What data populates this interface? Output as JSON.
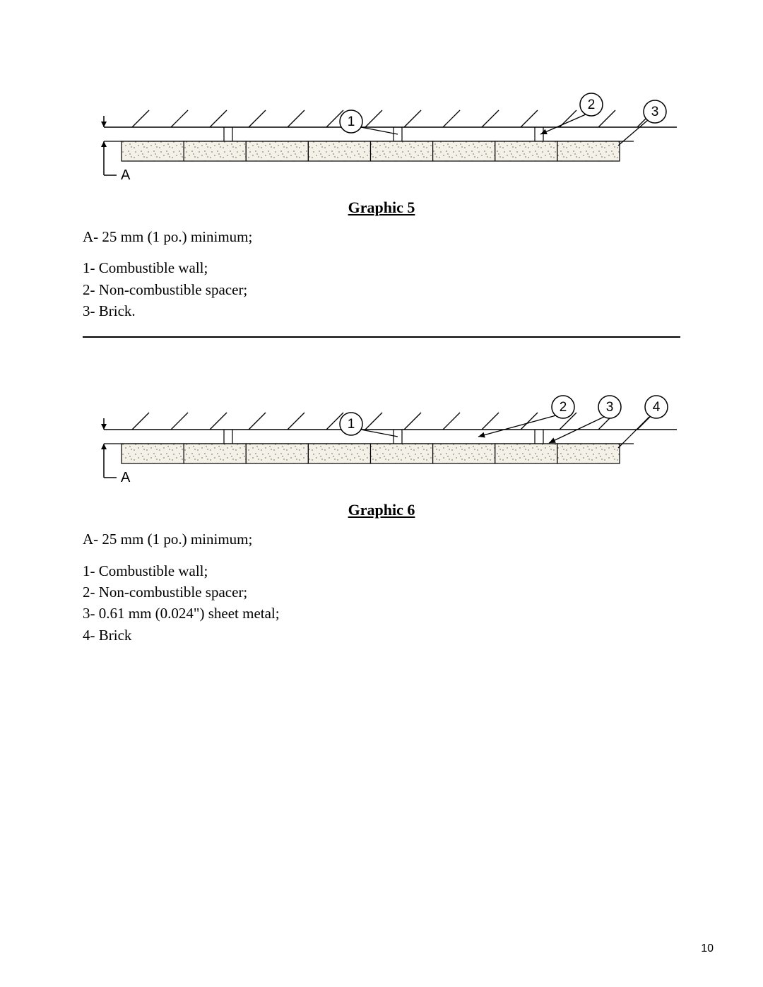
{
  "page_number": "10",
  "graphics": [
    {
      "caption": "Graphic 5",
      "dim_label": "A",
      "callouts": [
        "1",
        "2",
        "3"
      ],
      "brick": {
        "count": 8,
        "fill": "#f4f1e9",
        "stroke": "#000000",
        "speckle": "#8a8575"
      },
      "hatch_stroke": "#000000",
      "legend_A": "A- 25 mm (1 po.) minimum;",
      "legend_items": [
        "1- Combustible wall;",
        "2- Non-combustible spacer;",
        "3- Brick."
      ]
    },
    {
      "caption": "Graphic 6",
      "dim_label": "A",
      "callouts": [
        "1",
        "2",
        "3",
        "4"
      ],
      "brick": {
        "count": 8,
        "fill": "#f4f1e9",
        "stroke": "#000000",
        "speckle": "#8a8575"
      },
      "hatch_stroke": "#000000",
      "legend_A": "A- 25 mm (1 po.) minimum;",
      "legend_items": [
        "1- Combustible wall;",
        "2- Non-combustible spacer;",
        "3- 0.61 mm (0.024\") sheet metal;",
        "4- Brick"
      ]
    }
  ]
}
